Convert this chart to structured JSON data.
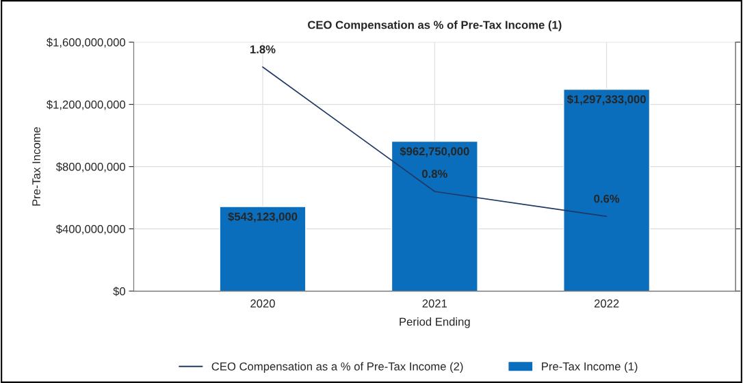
{
  "chart_data": {
    "type": "bar",
    "title": "CEO Compensation as % of Pre-Tax Income (1)",
    "xlabel": "Period Ending",
    "ylabel": "Pre-Tax Income",
    "categories": [
      "2020",
      "2021",
      "2022"
    ],
    "series": [
      {
        "name": "CEO Compensation as a % of Pre-Tax Income (2)",
        "type": "line",
        "axis": "y2",
        "color": "#1f3864",
        "values": [
          1.8,
          0.8,
          0.6
        ],
        "value_labels": [
          "1.8%",
          "0.8%",
          "0.6%"
        ]
      },
      {
        "name": "Pre-Tax Income (1)",
        "color": "#0a6ebd",
        "values": [
          543123000,
          962750000,
          1297333000
        ],
        "value_labels": [
          "$543,123,000",
          "$962,750,000",
          "$1,297,333,000"
        ]
      }
    ],
    "ylim": [
      0,
      1600000000
    ],
    "yticks": [
      {
        "value": 0,
        "label": "$0"
      },
      {
        "value": 400000000,
        "label": "$400,000,000"
      },
      {
        "value": 800000000,
        "label": "$800,000,000"
      },
      {
        "value": 1200000000,
        "label": "$1,200,000,000"
      },
      {
        "value": 1600000000,
        "label": "$1,600,000,000"
      }
    ],
    "y2lim": [
      0,
      2.0
    ],
    "y2ticks": [
      {
        "value": 0,
        "label": null
      },
      {
        "value": 0.5,
        "label": null
      },
      {
        "value": 1.0,
        "label": null
      },
      {
        "value": 1.5,
        "label": null
      },
      {
        "value": 2.0,
        "label": null
      }
    ],
    "grid": true,
    "legend": "bottom"
  }
}
